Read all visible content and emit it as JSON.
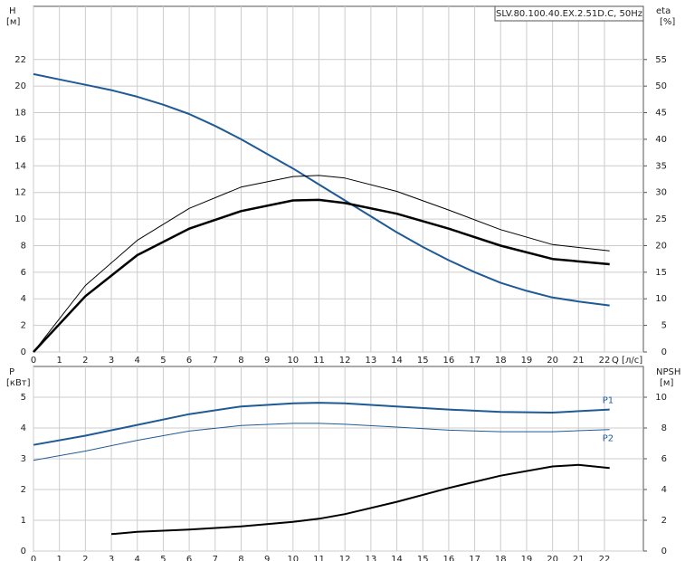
{
  "chart_data": [
    {
      "type": "line",
      "title": "SLV.80.100.40.EX.2.51D.C, 50Hz",
      "ylabel": "H",
      "yunit": "[м]",
      "y2label": "eta",
      "y2unit": "[%]",
      "xlabel": "Q [л/с]",
      "xlim": [
        0,
        23.5
      ],
      "xticks": [
        0,
        1,
        2,
        3,
        4,
        5,
        6,
        7,
        8,
        9,
        10,
        11,
        12,
        13,
        14,
        15,
        16,
        17,
        18,
        19,
        20,
        21,
        22
      ],
      "ylim": [
        0,
        26
      ],
      "yticks": [
        0,
        2,
        4,
        6,
        8,
        10,
        12,
        14,
        16,
        18,
        20,
        22
      ],
      "y2lim": [
        0,
        65
      ],
      "y2ticks": [
        0,
        5,
        10,
        15,
        20,
        25,
        30,
        35,
        40,
        45,
        50,
        55
      ],
      "grid": true,
      "series": [
        {
          "color": "#1f5a96",
          "width": 2,
          "x": [
            0,
            1,
            2,
            3,
            4,
            5,
            6,
            7,
            8,
            9,
            10,
            11,
            12,
            13,
            14,
            15,
            16,
            17,
            18,
            19,
            20,
            21,
            22.2
          ],
          "values": [
            20.9,
            20.5,
            20.1,
            19.7,
            19.2,
            18.6,
            17.9,
            17.0,
            16.0,
            14.9,
            13.8,
            12.6,
            11.4,
            10.2,
            9.0,
            7.9,
            6.9,
            6.0,
            5.2,
            4.6,
            4.1,
            3.8,
            3.5
          ]
        },
        {
          "color": "#000000",
          "width": 1,
          "axis": "y2",
          "x": [
            0,
            2,
            4,
            6,
            8,
            10,
            11,
            12,
            14,
            16,
            18,
            20,
            22.2
          ],
          "values": [
            0,
            12.5,
            21,
            27,
            31,
            33,
            33.2,
            32.7,
            30.2,
            26.7,
            23,
            20.2,
            19
          ]
        },
        {
          "color": "#000000",
          "width": 2.5,
          "axis": "y2",
          "x": [
            0,
            2,
            4,
            6,
            8,
            10,
            11,
            12,
            14,
            16,
            18,
            20,
            22.2
          ],
          "values": [
            0,
            10.5,
            18.2,
            23.2,
            26.5,
            28.5,
            28.6,
            28,
            26,
            23.2,
            20,
            17.5,
            16.5
          ]
        }
      ]
    },
    {
      "type": "line",
      "ylabel": "P",
      "yunit": "[кВт]",
      "y2label": "NPSH",
      "y2unit": "[м]",
      "xlim": [
        0,
        23.5
      ],
      "xticks": [
        0,
        1,
        2,
        3,
        4,
        5,
        6,
        7,
        8,
        9,
        10,
        11,
        12,
        13,
        14,
        15,
        16,
        17,
        18,
        19,
        20,
        21,
        22
      ],
      "ylim": [
        0,
        6
      ],
      "yticks": [
        0,
        1,
        2,
        3,
        4,
        5
      ],
      "y2lim": [
        0,
        12
      ],
      "y2ticks": [
        0,
        2,
        4,
        6,
        8,
        10
      ],
      "grid": true,
      "series": [
        {
          "name": "P1",
          "color": "#1f5a96",
          "width": 2,
          "x": [
            0,
            2,
            4,
            6,
            8,
            10,
            11,
            12,
            14,
            16,
            18,
            20,
            22.2
          ],
          "values": [
            3.45,
            3.75,
            4.1,
            4.45,
            4.7,
            4.8,
            4.82,
            4.8,
            4.7,
            4.6,
            4.52,
            4.5,
            4.6
          ]
        },
        {
          "name": "P2",
          "color": "#1f5a96",
          "width": 1,
          "x": [
            0,
            2,
            4,
            6,
            8,
            10,
            11,
            12,
            14,
            16,
            18,
            20,
            22.2
          ],
          "values": [
            2.95,
            3.25,
            3.6,
            3.9,
            4.08,
            4.15,
            4.15,
            4.12,
            4.03,
            3.93,
            3.88,
            3.88,
            3.95
          ]
        },
        {
          "color": "#000000",
          "width": 2,
          "axis": "y2",
          "x": [
            3,
            4,
            6,
            8,
            10,
            11,
            12,
            14,
            16,
            18,
            20,
            21,
            22.2
          ],
          "values": [
            1.1,
            1.25,
            1.4,
            1.6,
            1.9,
            2.1,
            2.4,
            3.2,
            4.1,
            4.9,
            5.5,
            5.6,
            5.4
          ]
        }
      ]
    }
  ]
}
